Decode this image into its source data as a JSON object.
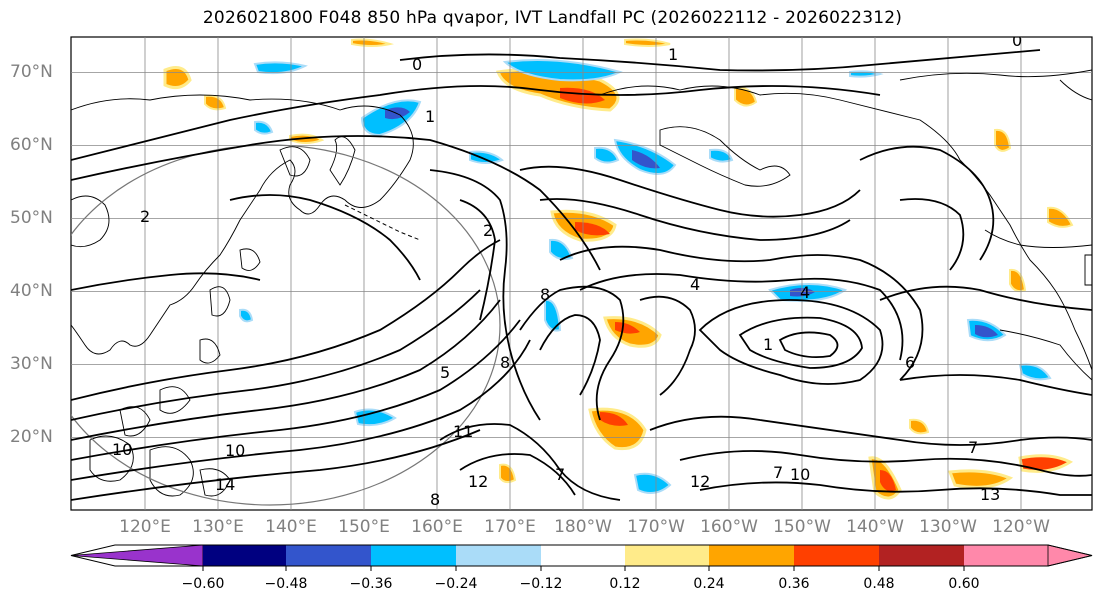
{
  "title": "2026021800 F048 850 hPa qvapor, IVT Landfall PC (2026022112 - 2026022312)",
  "lat_labels": [
    "70°N",
    "60°N",
    "50°N",
    "40°N",
    "30°N",
    "20°N"
  ],
  "lon_labels": [
    "120°E",
    "130°E",
    "140°E",
    "150°E",
    "160°E",
    "170°E",
    "180°W",
    "170°W",
    "160°W",
    "150°W",
    "140°W",
    "130°W",
    "120°W"
  ],
  "colorbar": {
    "colors": [
      "#9933cc",
      "#000080",
      "#3355cc",
      "#00bfff",
      "#aadcf8",
      "#ffffff",
      "#ffeb8a",
      "#ffa500",
      "#ff4000",
      "#b22222",
      "#ff88aa"
    ],
    "tick_labels": [
      "−0.60",
      "−0.48",
      "−0.36",
      "−0.24",
      "−0.12",
      "0.12",
      "0.24",
      "0.36",
      "0.48",
      "0.60"
    ]
  },
  "contour_labels": [
    "0",
    "0",
    "1",
    "1",
    "1",
    "2",
    "2",
    "4",
    "4",
    "5",
    "6",
    "7",
    "7",
    "7",
    "8",
    "8",
    "8",
    "10",
    "10",
    "10",
    "11",
    "12",
    "12",
    "13",
    "14"
  ],
  "colors": {
    "grid": "#888888",
    "coast": "#000000",
    "contour": "#000000",
    "tick_text": "#808080"
  }
}
